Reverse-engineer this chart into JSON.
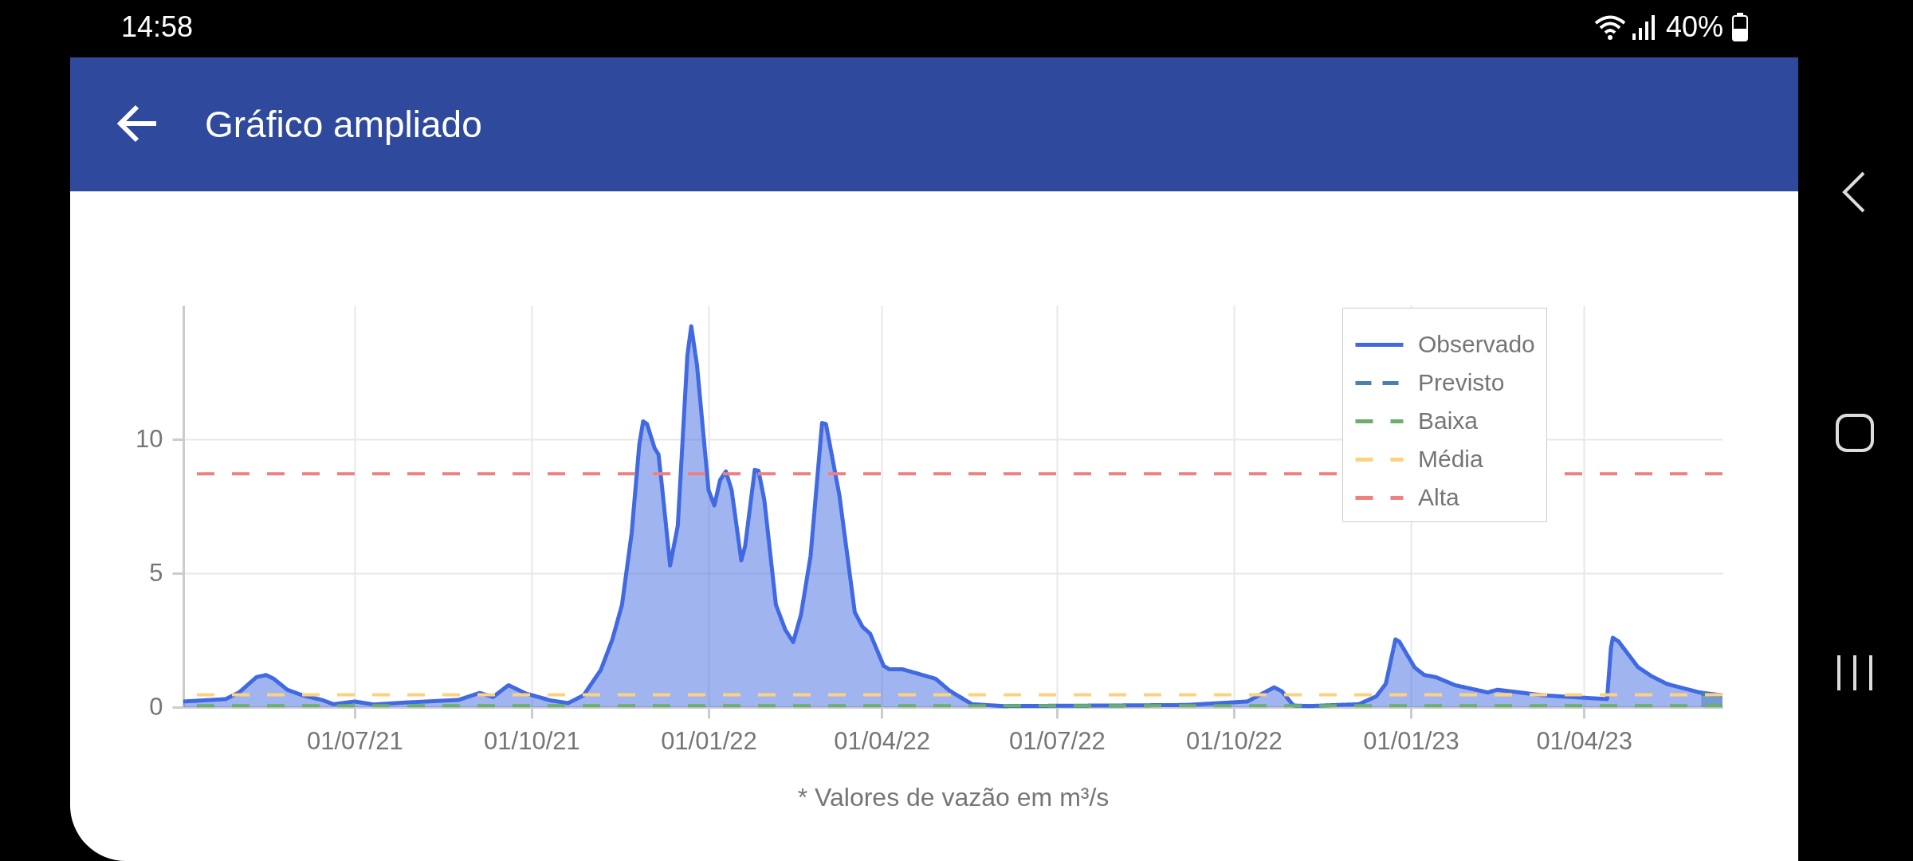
{
  "chart_data": {
    "type": "area",
    "title": "Gráfico ampliado",
    "xlabel": "* Valores de vazão em m³/s",
    "annotations": [
      "14:58",
      "40%"
    ],
    "xlim": [
      "2021-04-03",
      "2023-06-12"
    ],
    "ylim": [
      0,
      15
    ],
    "xticks": [
      {
        "value": "2021-07-01",
        "label": "01/07/21"
      },
      {
        "value": "2021-10-01",
        "label": "01/10/21"
      },
      {
        "value": "2022-01-01",
        "label": "01/01/22"
      },
      {
        "value": "2022-04-01",
        "label": "01/04/22"
      },
      {
        "value": "2022-07-01",
        "label": "01/07/22"
      },
      {
        "value": "2022-10-01",
        "label": "01/10/22"
      },
      {
        "value": "2023-01-01",
        "label": "01/01/23"
      },
      {
        "value": "2023-04-01",
        "label": "01/04/23"
      }
    ],
    "yticks": [
      0,
      5,
      10
    ],
    "grid": true,
    "legend": "top right",
    "series": [
      {
        "name": "Observado",
        "color": "#4169e1",
        "line_style": "solid",
        "x": [
          "2021-04-03",
          "2021-04-25",
          "2021-05-02",
          "2021-05-11",
          "2021-05-16",
          "2021-05-20",
          "2021-05-27",
          "2021-06-04",
          "2021-06-14",
          "2021-06-20",
          "2021-07-01",
          "2021-07-11",
          "2021-07-27",
          "2021-08-24",
          "2021-09-04",
          "2021-09-11",
          "2021-09-19",
          "2021-09-28",
          "2021-10-11",
          "2021-10-20",
          "2021-10-28",
          "2021-11-06",
          "2021-11-12",
          "2021-11-17",
          "2021-11-22",
          "2021-11-26",
          "2021-11-28",
          "2021-11-30",
          "2021-12-04",
          "2021-12-06",
          "2021-12-08",
          "2021-12-12",
          "2021-12-16",
          "2021-12-21",
          "2021-12-23",
          "2021-12-26",
          "2022-01-01",
          "2022-01-04",
          "2022-01-07",
          "2022-01-10",
          "2022-01-13",
          "2022-01-18",
          "2022-01-20",
          "2022-01-25",
          "2022-01-27",
          "2022-01-30",
          "2022-02-05",
          "2022-02-10",
          "2022-02-14",
          "2022-02-18",
          "2022-02-23",
          "2022-03-01",
          "2022-03-03",
          "2022-03-10",
          "2022-03-18",
          "2022-03-22",
          "2022-03-26",
          "2022-04-02",
          "2022-04-05",
          "2022-04-12",
          "2022-04-29",
          "2022-05-06",
          "2022-05-10",
          "2022-05-18",
          "2022-06-03",
          "2022-07-29",
          "2022-09-06",
          "2022-10-08",
          "2022-10-22",
          "2022-10-26",
          "2022-11-01",
          "2022-11-09",
          "2022-12-05",
          "2022-12-14",
          "2022-12-19",
          "2022-12-24",
          "2022-12-26",
          "2023-01-03",
          "2023-01-08",
          "2023-01-14",
          "2023-01-24",
          "2023-02-10",
          "2023-02-15",
          "2023-03-11",
          "2023-04-13",
          "2023-04-15",
          "2023-04-16",
          "2023-04-19",
          "2023-04-29",
          "2023-05-06",
          "2023-05-14",
          "2023-05-31",
          "2023-06-12"
        ],
        "values": [
          0.21,
          0.3,
          0.55,
          1.12,
          1.2,
          1.06,
          0.65,
          0.44,
          0.27,
          0.11,
          0.21,
          0.1,
          0.17,
          0.27,
          0.53,
          0.38,
          0.82,
          0.51,
          0.25,
          0.15,
          0.44,
          1.39,
          2.53,
          3.82,
          6.48,
          9.81,
          10.67,
          10.57,
          9.66,
          9.43,
          8.1,
          5.29,
          6.77,
          13.14,
          14.22,
          12.76,
          8.1,
          7.53,
          8.48,
          8.8,
          8.1,
          5.48,
          6.01,
          8.86,
          8.82,
          7.72,
          3.82,
          2.87,
          2.43,
          3.44,
          5.63,
          10.61,
          10.57,
          7.91,
          3.54,
          3.0,
          2.74,
          1.54,
          1.41,
          1.41,
          1.06,
          0.63,
          0.45,
          0.11,
          0.04,
          0.06,
          0.08,
          0.21,
          0.74,
          0.59,
          0.06,
          0.04,
          0.11,
          0.4,
          0.87,
          2.53,
          2.45,
          1.48,
          1.2,
          1.12,
          0.82,
          0.55,
          0.65,
          0.44,
          0.3,
          2.2,
          2.59,
          2.45,
          1.5,
          1.16,
          0.87,
          0.55,
          0.44
        ]
      },
      {
        "name": "Previsto",
        "color": "#4a7fb0",
        "line_style": "dashed",
        "x": [
          "2023-06-01",
          "2023-06-12"
        ],
        "values": [
          0.5,
          0.44
        ]
      }
    ],
    "ref_lines": [
      {
        "axis": "y",
        "value": 0.05,
        "label": "Baixa",
        "color": "#6aaf6e",
        "line_style": "dashed"
      },
      {
        "axis": "y",
        "value": 0.46,
        "label": "Média",
        "color": "#fdd17f",
        "line_style": "dashed"
      },
      {
        "axis": "y",
        "value": 8.71,
        "label": "Alta",
        "color": "#f08080",
        "line_style": "dashed"
      }
    ]
  }
}
